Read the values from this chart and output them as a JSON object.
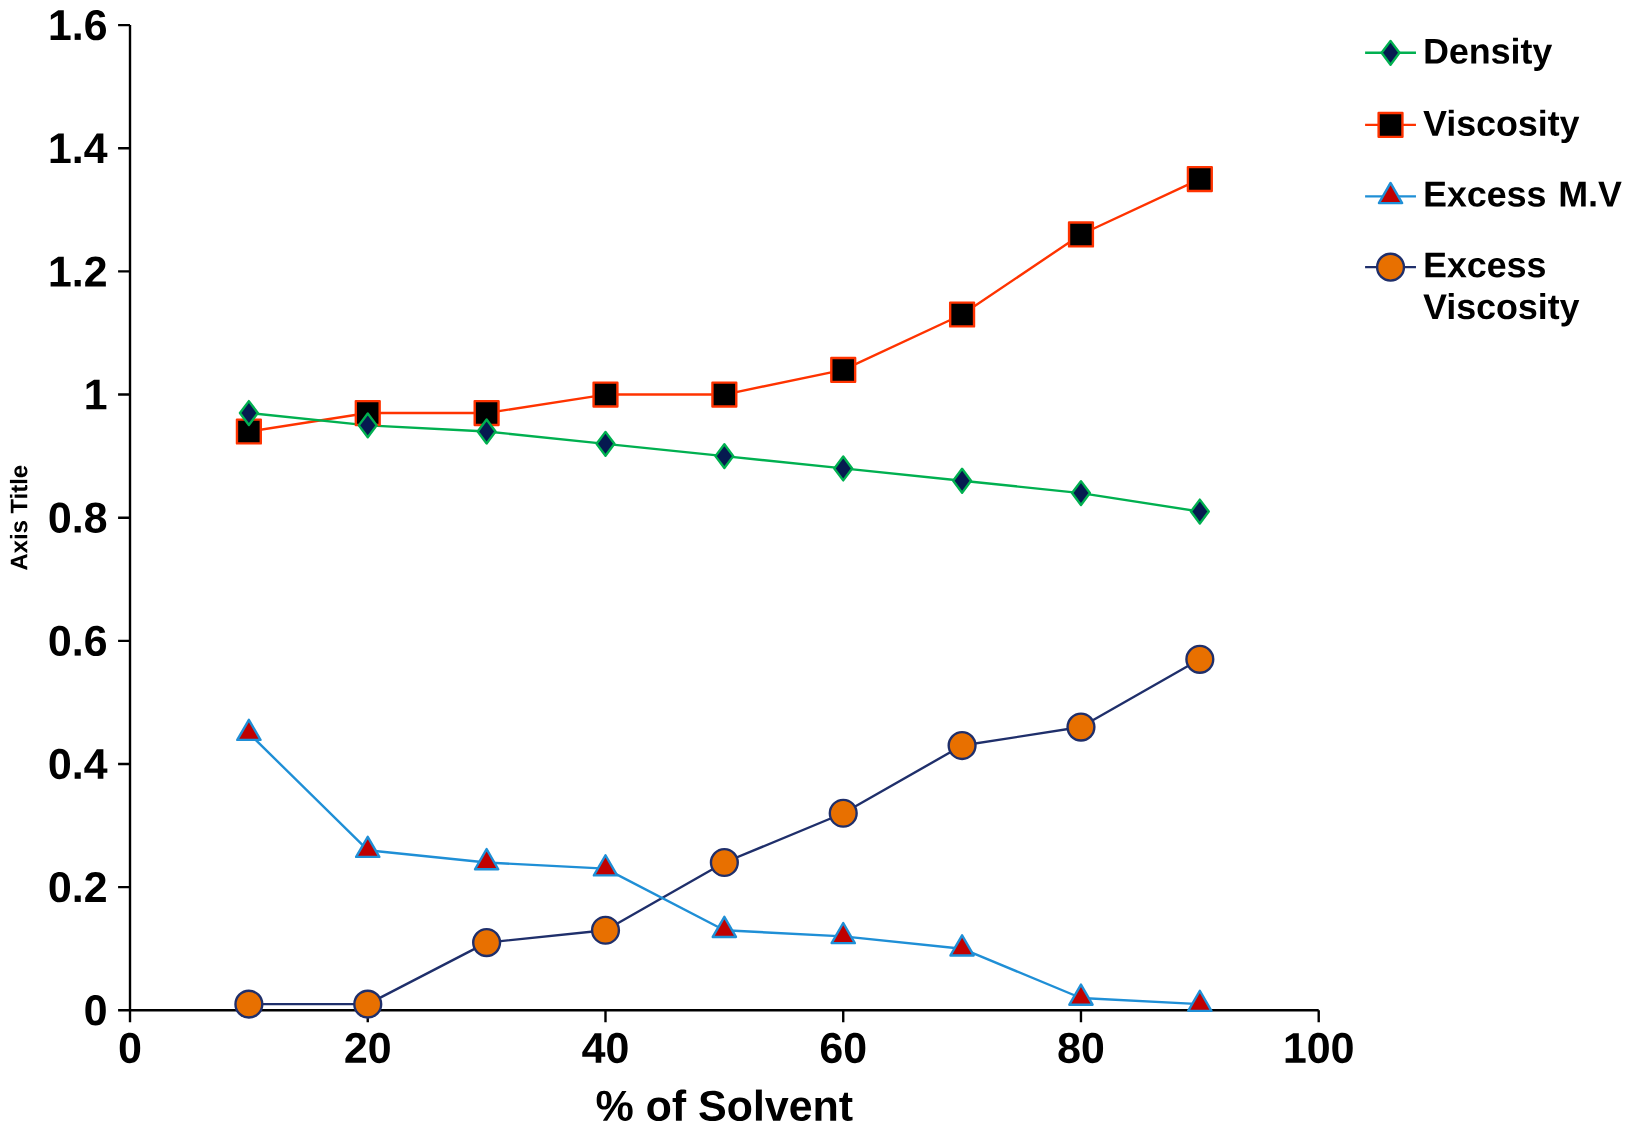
{
  "chart_data": {
    "type": "line",
    "xlabel": "%  of Solvent",
    "ylabel": "Axis Title",
    "x": [
      10,
      20,
      30,
      40,
      50,
      60,
      70,
      80,
      90
    ],
    "xlim": [
      0,
      100
    ],
    "xticks": [
      0,
      20,
      40,
      60,
      80,
      100
    ],
    "ylim": [
      0,
      1.6
    ],
    "yticks": [
      0,
      0.2,
      0.4,
      0.6,
      0.8,
      1,
      1.2,
      1.4,
      1.6
    ],
    "legend": "right",
    "grid": false,
    "series": [
      {
        "name": "Density",
        "color": "#00b050",
        "marker": "diamond",
        "values": [
          0.97,
          0.95,
          0.94,
          0.92,
          0.9,
          0.88,
          0.86,
          0.84,
          0.81
        ]
      },
      {
        "name": "Viscosity",
        "color": "#ff3300",
        "marker": "square",
        "values": [
          0.94,
          0.97,
          0.97,
          1.0,
          1.0,
          1.04,
          1.13,
          1.26,
          1.35
        ]
      },
      {
        "name": "Excess M.V",
        "color": "#1f8fd6",
        "marker": "triangle",
        "values": [
          0.45,
          0.26,
          0.24,
          0.23,
          0.13,
          0.12,
          0.1,
          0.02,
          0.01
        ]
      },
      {
        "name": "Excess Viscosity",
        "color": "#1f2f6b",
        "marker": "circle",
        "values": [
          0.01,
          0.01,
          0.11,
          0.13,
          0.24,
          0.32,
          0.43,
          0.46,
          0.57
        ]
      }
    ]
  }
}
